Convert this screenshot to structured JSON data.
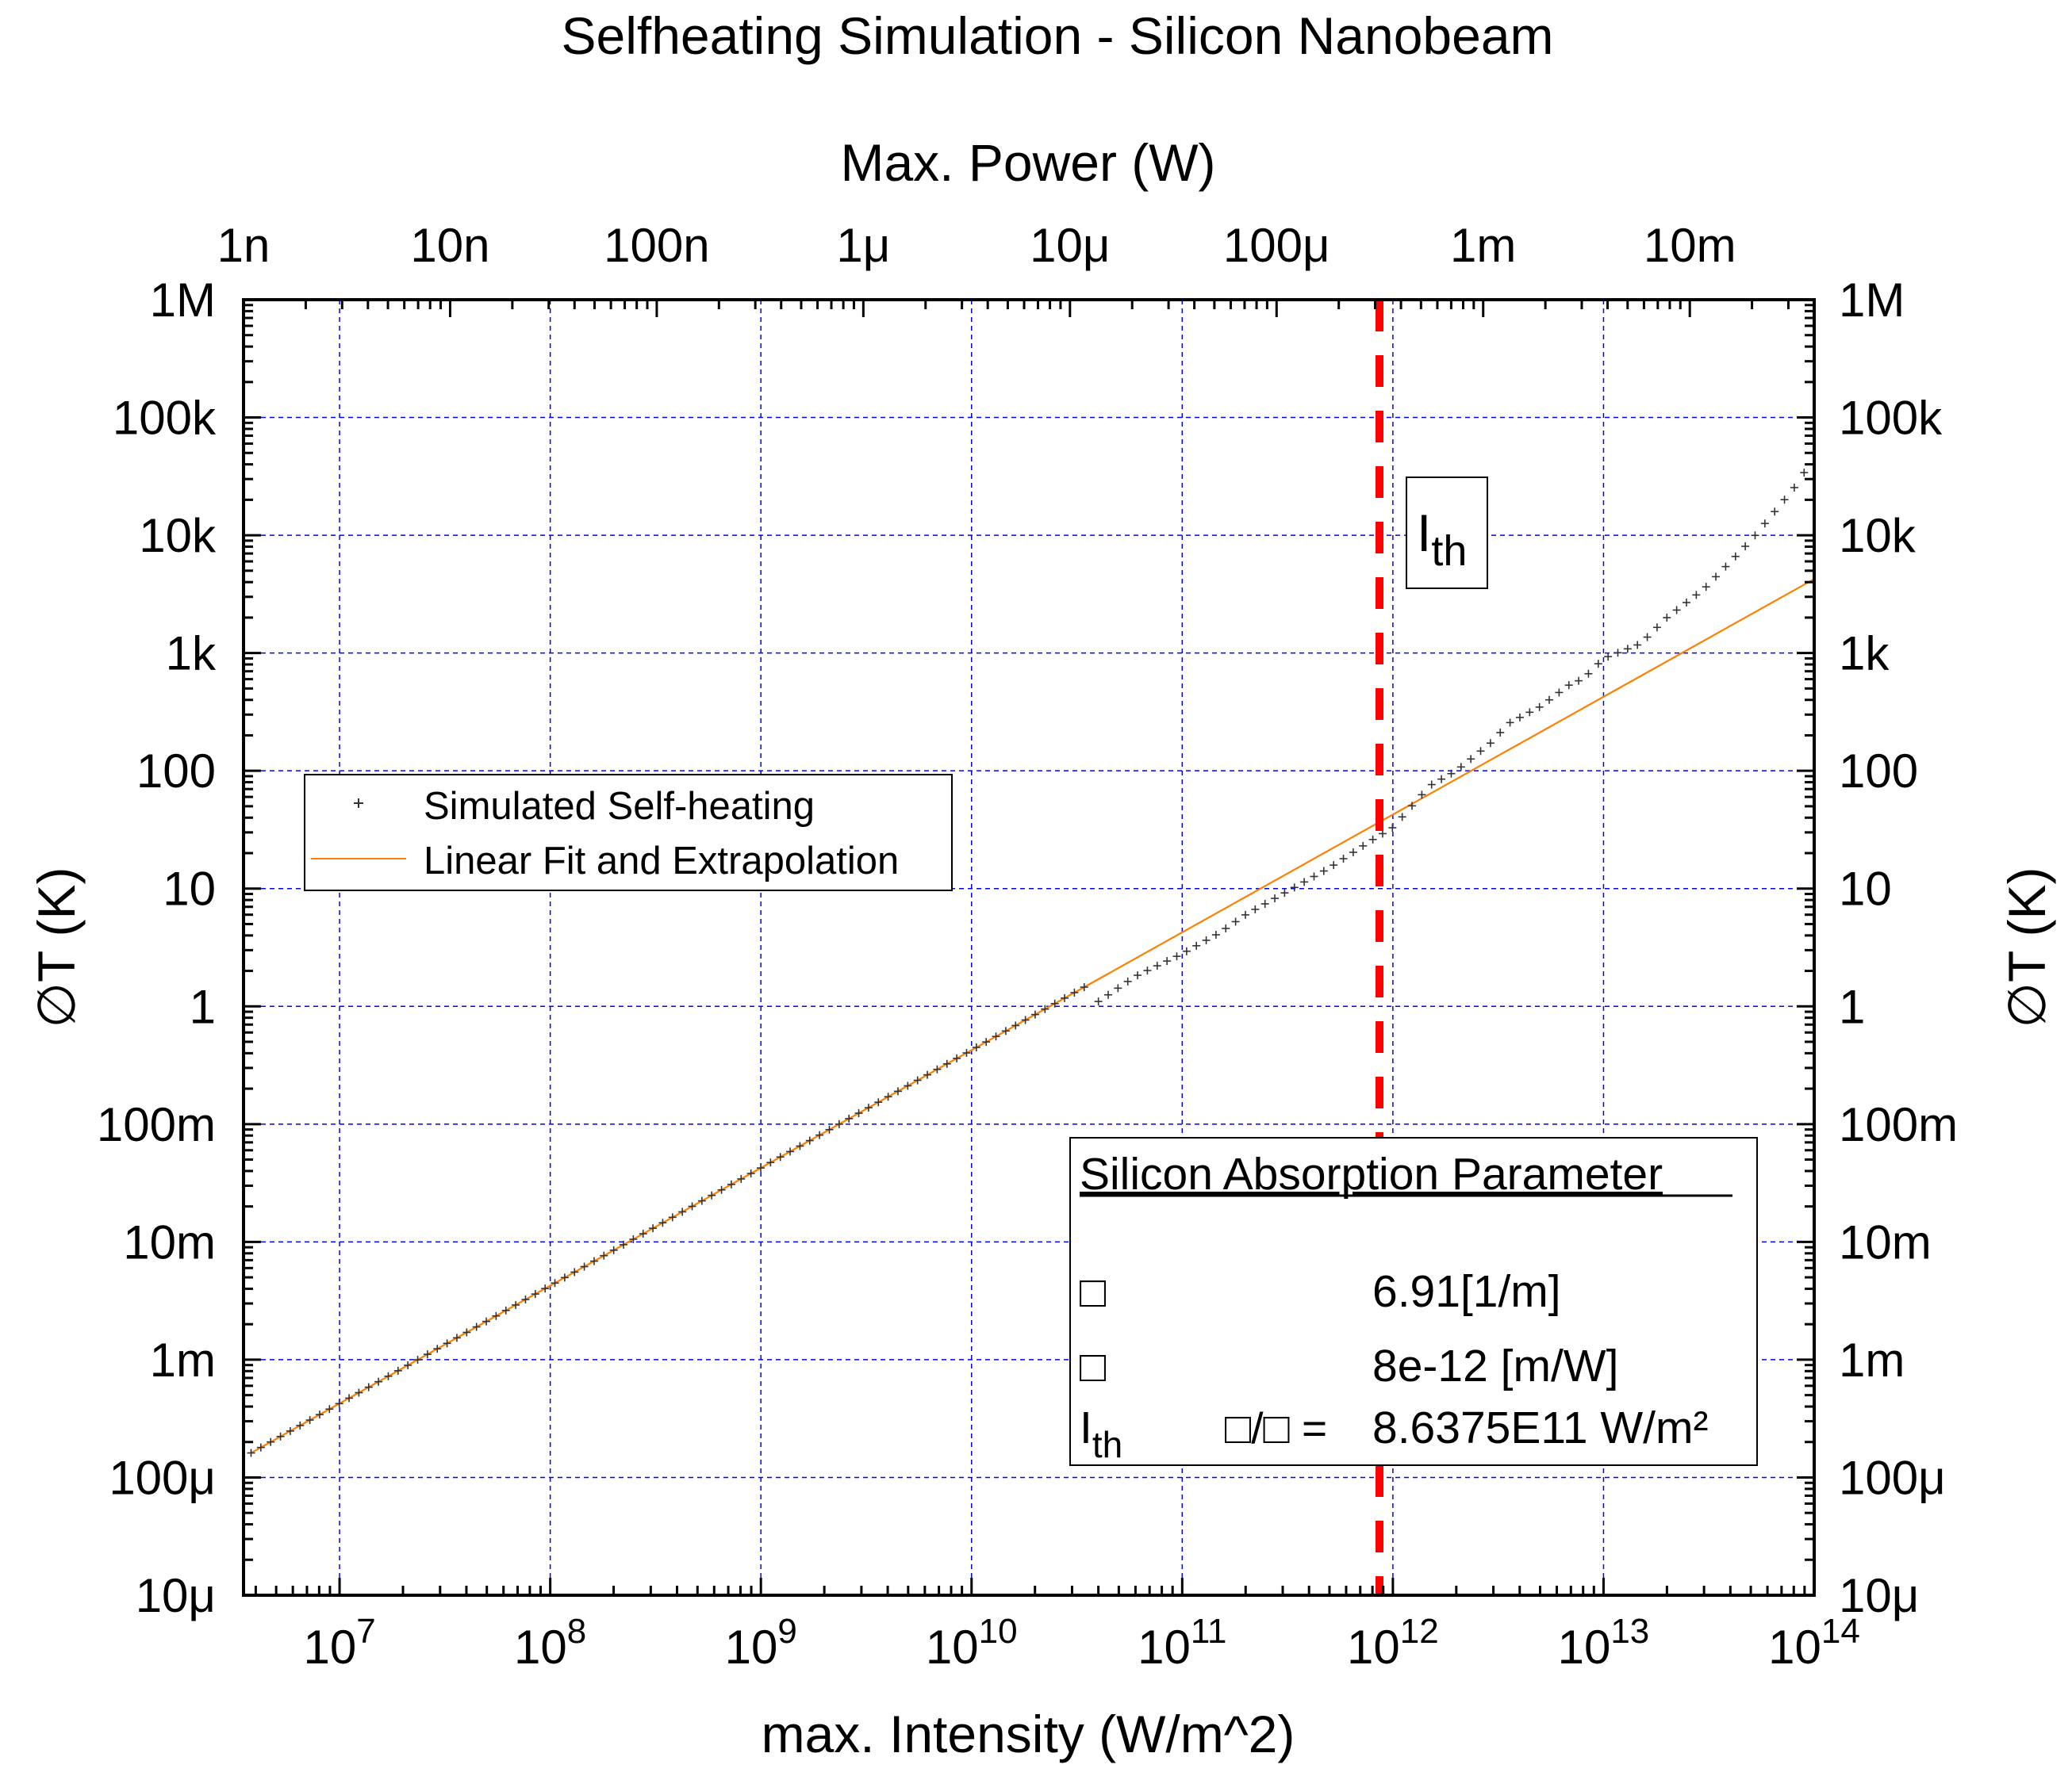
{
  "chart_data": {
    "type": "scatter",
    "title": "Selfheating Simulation - Silicon Nanobeam",
    "xlabel": "max. Intensity (W/m^2)",
    "ylabel": "∅T (K)",
    "ylabel_right": "∅T (K)",
    "x2label": "Max. Power (W)",
    "xscale": "log",
    "yscale": "log",
    "xlim": [
      3500000,
      100000000000000
    ],
    "ylim": [
      1e-05,
      1000000
    ],
    "x2lim": [
      1e-09,
      0.04
    ],
    "grid": true,
    "x_ticks": [
      {
        "value": 10000000,
        "mant": "10",
        "exp": "7"
      },
      {
        "value": 100000000,
        "mant": "10",
        "exp": "8"
      },
      {
        "value": 1000000000,
        "mant": "10",
        "exp": "9"
      },
      {
        "value": 10000000000,
        "mant": "10",
        "exp": "10"
      },
      {
        "value": 100000000000,
        "mant": "10",
        "exp": "11"
      },
      {
        "value": 1000000000000,
        "mant": "10",
        "exp": "12"
      },
      {
        "value": 10000000000000,
        "mant": "10",
        "exp": "13"
      },
      {
        "value": 100000000000000,
        "mant": "10",
        "exp": "14"
      }
    ],
    "y_ticks": [
      {
        "value": 1e-05,
        "label": "10μ"
      },
      {
        "value": 0.0001,
        "label": "100μ"
      },
      {
        "value": 0.001,
        "label": "1m"
      },
      {
        "value": 0.01,
        "label": "10m"
      },
      {
        "value": 0.1,
        "label": "100m"
      },
      {
        "value": 1,
        "label": "1"
      },
      {
        "value": 10,
        "label": "10"
      },
      {
        "value": 100,
        "label": "100"
      },
      {
        "value": 1000,
        "label": "1k"
      },
      {
        "value": 10000,
        "label": "10k"
      },
      {
        "value": 100000,
        "label": "100k"
      },
      {
        "value": 1000000,
        "label": "1M"
      }
    ],
    "x2_ticks": [
      {
        "value": 1e-09,
        "label": "1n"
      },
      {
        "value": 1e-08,
        "label": "10n"
      },
      {
        "value": 1e-07,
        "label": "100n"
      },
      {
        "value": 1e-06,
        "label": "1μ"
      },
      {
        "value": 1e-05,
        "label": "10μ"
      },
      {
        "value": 0.0001,
        "label": "100μ"
      },
      {
        "value": 0.001,
        "label": "1m"
      },
      {
        "value": 0.01,
        "label": "10m"
      }
    ],
    "series": [
      {
        "name": "Simulated Self-heating",
        "kind": "scatter",
        "marker": "+",
        "color": "#333333",
        "x_range": [
          3800000,
          95000000000000
        ],
        "points_count": 160,
        "x": [
          40000000000.0,
          60000000000.0,
          100000000000.0,
          150000000000.0,
          200000000000.0,
          300000000000.0,
          500000000000.0,
          800000000000.0,
          1000000000000.0,
          1500000000000.0,
          2000000000000.0,
          3000000000000.0,
          3500000000000.0,
          5000000000000.0,
          7000000000000.0,
          8000000000000.0,
          10000000000000.0,
          15000000000000.0,
          20000000000000.0,
          30000000000000.0,
          50000000000000.0,
          80000000000000.0,
          95000000000000.0
        ],
        "y": [
          1.1,
          1.8,
          2.8,
          4.2,
          6,
          9,
          15,
          26,
          33,
          75,
          100,
          180,
          250,
          350,
          550,
          600,
          900,
          1200,
          2000,
          3500,
          9000,
          25000,
          40000
        ],
        "linear_regime": {
          "slope_K_per_Wm2": 4.25e-11,
          "until_x": 35000000000.0
        }
      },
      {
        "name": "Linear Fit and Extrapolation",
        "kind": "line",
        "color": "#ff8000",
        "x": [
          3800000,
          100000000000000
        ],
        "y": [
          0.0001615,
          4250
        ]
      }
    ],
    "annotations": [
      {
        "kind": "vline",
        "x": 863750000000,
        "color": "#ff0000",
        "style": "dashed",
        "label_main": "I",
        "label_sub": "th"
      }
    ],
    "legend": {
      "position": "middle-left"
    }
  },
  "param_box": {
    "title": "Silicon Absorption Parameter",
    "rows": [
      {
        "symbol": "□",
        "mid": "",
        "value": "6.91[1/m]"
      },
      {
        "symbol": "□",
        "mid": "",
        "value": "8e-12 [m/W]"
      },
      {
        "symbol": "I",
        "symbol_sub": "th",
        "mid": "□/□ =",
        "value": "8.6375E11 W/m²"
      }
    ]
  },
  "colors": {
    "grid": "#0000ff",
    "fit": "#ff8000",
    "threshold": "#ff0000",
    "points": "#333333"
  }
}
